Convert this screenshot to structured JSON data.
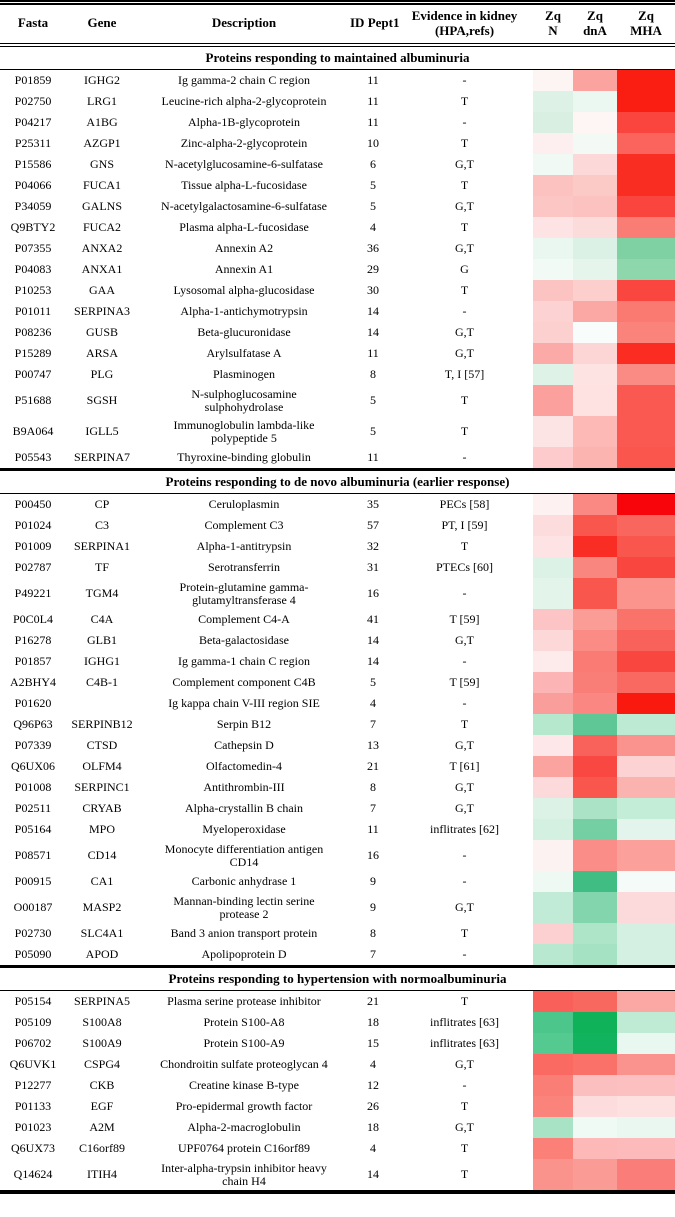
{
  "header": {
    "fasta": "Fasta",
    "gene": "Gene",
    "description": "Description",
    "id_pept1": "ID Pept1",
    "evidence_line1": "Evidence in kidney",
    "evidence_line2": "(HPA,refs)",
    "zq": "Zq",
    "zq_n_sub": "N",
    "zq_dna_sub": "dnA",
    "zq_mha_sub": "MHA"
  },
  "heatmap_colors": {
    "strong_increase_red": "#f8050c",
    "strong_decrease_green": "#0fb159",
    "neutral_white": "#fdfdfd"
  },
  "sections": [
    {
      "title": "Proteins responding to maintained albuminuria",
      "rows": [
        {
          "fasta": "P01859",
          "gene": "IGHG2",
          "description": "Ig gamma-2 chain C region",
          "id_pept1": "11",
          "evidence": "-",
          "zq_n": "#fdf4f4",
          "zq_dna": "#fba39f",
          "zq_mha": "#f91d12"
        },
        {
          "fasta": "P02750",
          "gene": "LRG1",
          "description": "Leucine-rich alpha-2-glycoprotein",
          "id_pept1": "11",
          "evidence": "T",
          "zq_n": "#ddf1e7",
          "zq_dna": "#ebf7f1",
          "zq_mha": "#f91d12"
        },
        {
          "fasta": "P04217",
          "gene": "A1BG",
          "description": "Alpha-1B-glycoprotein",
          "id_pept1": "11",
          "evidence": "-",
          "zq_n": "#d8efe2",
          "zq_dna": "#fdf6f5",
          "zq_mha": "#f9453d"
        },
        {
          "fasta": "P25311",
          "gene": "AZGP1",
          "description": "Zinc-alpha-2-glycoprotein",
          "id_pept1": "10",
          "evidence": "T",
          "zq_n": "#fdeff0",
          "zq_dna": "#f3faf6",
          "zq_mha": "#fa645c"
        },
        {
          "fasta": "P15586",
          "gene": "GNS",
          "description": "N-acetylglucosamine-6-sulfatase",
          "id_pept1": "6",
          "evidence": "G,T",
          "zq_n": "#f0f9f4",
          "zq_dna": "#fcd9d8",
          "zq_mha": "#fa2d23"
        },
        {
          "fasta": "P04066",
          "gene": "FUCA1",
          "description": "Tissue alpha-L-fucosidase",
          "id_pept1": "5",
          "evidence": "T",
          "zq_n": "#fbc2c0",
          "zq_dna": "#fbcac7",
          "zq_mha": "#fa2d23"
        },
        {
          "fasta": "P34059",
          "gene": "GALNS",
          "description": "N-acetylgalactosamine-6-sulfatase",
          "id_pept1": "5",
          "evidence": "G,T",
          "zq_n": "#fbc6c3",
          "zq_dna": "#fbc2bf",
          "zq_mha": "#f9453d"
        },
        {
          "fasta": "Q9BTY2",
          "gene": "FUCA2",
          "description": "Plasma alpha-L-fucosidase",
          "id_pept1": "4",
          "evidence": "T",
          "zq_n": "#fde3e3",
          "zq_dna": "#fcdcda",
          "zq_mha": "#fa7d75"
        },
        {
          "fasta": "P07355",
          "gene": "ANXA2",
          "description": "Annexin A2",
          "id_pept1": "36",
          "evidence": "G,T",
          "zq_n": "#eaf7f0",
          "zq_dna": "#dcf1e5",
          "zq_mha": "#7fd1a4"
        },
        {
          "fasta": "P04083",
          "gene": "ANXA1",
          "description": "Annexin A1",
          "id_pept1": "29",
          "evidence": "G",
          "zq_n": "#f2faf6",
          "zq_dna": "#e5f5ec",
          "zq_mha": "#8ed6ab"
        },
        {
          "fasta": "P10253",
          "gene": "GAA",
          "description": "Lysosomal alpha-glucosidase",
          "id_pept1": "30",
          "evidence": "T",
          "zq_n": "#fbc4c2",
          "zq_dna": "#fccfcc",
          "zq_mha": "#f9473f"
        },
        {
          "fasta": "P01011",
          "gene": "SERPINA3",
          "description": "Alpha-1-antichymotrypsin",
          "id_pept1": "14",
          "evidence": "-",
          "zq_n": "#fdd2d2",
          "zq_dna": "#fba8a4",
          "zq_mha": "#fa7a72"
        },
        {
          "fasta": "P08236",
          "gene": "GUSB",
          "description": "Beta-glucuronidase",
          "id_pept1": "14",
          "evidence": "G,T",
          "zq_n": "#fdd0d0",
          "zq_dna": "#f8fcfa",
          "zq_mha": "#fa837c"
        },
        {
          "fasta": "P15289",
          "gene": "ARSA",
          "description": "Arylsulfatase A",
          "id_pept1": "11",
          "evidence": "G,T",
          "zq_n": "#fbaaa7",
          "zq_dna": "#fcd6d4",
          "zq_mha": "#fb2d23"
        },
        {
          "fasta": "P00747",
          "gene": "PLG",
          "description": "Plasminogen",
          "id_pept1": "8",
          "evidence": "T, I [57]",
          "zq_n": "#def2e7",
          "zq_dna": "#fde3e2",
          "zq_mha": "#fa8b84"
        },
        {
          "fasta": "P51688",
          "gene": "SGSH",
          "description": "N-sulphoglucosamine sulphohydrolase",
          "id_pept1": "5",
          "evidence": "T",
          "zq_n": "#fba09d",
          "zq_dna": "#fde2e1",
          "zq_mha": "#f95950"
        },
        {
          "fasta": "B9A064",
          "gene": "IGLL5",
          "description": "Immunoglobulin lambda-like polypeptide 5",
          "id_pept1": "5",
          "evidence": "T",
          "zq_n": "#fde4e4",
          "zq_dna": "#fcb9b6",
          "zq_mha": "#f95951"
        },
        {
          "fasta": "P05543",
          "gene": "SERPINA7",
          "description": "Thyroxine-binding globulin",
          "id_pept1": "11",
          "evidence": "-",
          "zq_n": "#fdcbcb",
          "zq_dna": "#fcb4b1",
          "zq_mha": "#fa564e"
        }
      ]
    },
    {
      "title": "Proteins responding to de novo albuminuria (earlier response)",
      "rows": [
        {
          "fasta": "P00450",
          "gene": "CP",
          "description": "Ceruloplasmin",
          "id_pept1": "35",
          "evidence": "PECs [58]",
          "zq_n": "#fdf1f2",
          "zq_dna": "#fb8983",
          "zq_mha": "#f8050c"
        },
        {
          "fasta": "P01024",
          "gene": "C3",
          "description": "Complement C3",
          "id_pept1": "57",
          "evidence": "PT, I [59]",
          "zq_n": "#fddcdd",
          "zq_dna": "#f9564e",
          "zq_mha": "#f9665e"
        },
        {
          "fasta": "P01009",
          "gene": "SERPINA1",
          "description": "Alpha-1-antitrypsin",
          "id_pept1": "32",
          "evidence": "T",
          "zq_n": "#fde3e4",
          "zq_dna": "#f92d24",
          "zq_mha": "#f9564e"
        },
        {
          "fasta": "P02787",
          "gene": "TF",
          "description": "Serotransferrin",
          "id_pept1": "31",
          "evidence": "PTECs [60]",
          "zq_n": "#dcf2e6",
          "zq_dna": "#fa8680",
          "zq_mha": "#f9473f"
        },
        {
          "fasta": "P49221",
          "gene": "TGM4",
          "description": "Protein-glutamine gamma-glutamyltransferase 4",
          "id_pept1": "16",
          "evidence": "-",
          "zq_n": "#e3f5eb",
          "zq_dna": "#f9564e",
          "zq_mha": "#fa948d"
        },
        {
          "fasta": "P0C0L4",
          "gene": "C4A",
          "description": "Complement C4-A",
          "id_pept1": "41",
          "evidence": "T [59]",
          "zq_n": "#fcc4c4",
          "zq_dna": "#fa9d97",
          "zq_mha": "#f9736b"
        },
        {
          "fasta": "P16278",
          "gene": "GLB1",
          "description": "Beta-galactosidase",
          "id_pept1": "14",
          "evidence": "G,T",
          "zq_n": "#fcd8d8",
          "zq_dna": "#fa8b85",
          "zq_mha": "#f9625b"
        },
        {
          "fasta": "P01857",
          "gene": "IGHG1",
          "description": "Ig gamma-1 chain C region",
          "id_pept1": "14",
          "evidence": "-",
          "zq_n": "#fdebec",
          "zq_dna": "#fa7b74",
          "zq_mha": "#f9463e"
        },
        {
          "fasta": "A2BHY4",
          "gene": "C4B-1",
          "description": "Complement component C4B",
          "id_pept1": "5",
          "evidence": "T [59]",
          "zq_n": "#fcb4b4",
          "zq_dna": "#fa7e78",
          "zq_mha": "#fa6961"
        },
        {
          "fasta": "P01620",
          "gene": "",
          "description": "Ig kappa chain V-III region SIE",
          "id_pept1": "4",
          "evidence": "-",
          "zq_n": "#fa9e9c",
          "zq_dna": "#fa8781",
          "zq_mha": "#f9190f"
        },
        {
          "fasta": "Q96P63",
          "gene": "SERPINB12",
          "description": "Serpin B12",
          "id_pept1": "7",
          "evidence": "T",
          "zq_n": "#b6e8ce",
          "zq_dna": "#5fc795",
          "zq_mha": "#bdead3"
        },
        {
          "fasta": "P07339",
          "gene": "CTSD",
          "description": "Cathepsin D",
          "id_pept1": "13",
          "evidence": "G,T",
          "zq_n": "#fde7e8",
          "zq_dna": "#f9625b",
          "zq_mha": "#fa938d"
        },
        {
          "fasta": "Q6UX06",
          "gene": "OLFM4",
          "description": "Olfactomedin-4",
          "id_pept1": "21",
          "evidence": "T [61]",
          "zq_n": "#fba49f",
          "zq_dna": "#f94841",
          "zq_mha": "#fcd3d2"
        },
        {
          "fasta": "P01008",
          "gene": "SERPINC1",
          "description": "Antithrombin-III",
          "id_pept1": "8",
          "evidence": "G,T",
          "zq_n": "#fcd9da",
          "zq_dna": "#f9564e",
          "zq_mha": "#fbb3b0"
        },
        {
          "fasta": "P02511",
          "gene": "CRYAB",
          "description": "Alpha-crystallin B chain",
          "id_pept1": "7",
          "evidence": "G,T",
          "zq_n": "#ddf2e7",
          "zq_dna": "#abe3c7",
          "zq_mha": "#c4edd8"
        },
        {
          "fasta": "P05164",
          "gene": "MPO",
          "description": "Myeloperoxidase",
          "id_pept1": "11",
          "evidence": "inflitrates [62]",
          "zq_n": "#d3f0e1",
          "zq_dna": "#74cfa3",
          "zq_mha": "#e2f4ec"
        },
        {
          "fasta": "P08571",
          "gene": "CD14",
          "description": "Monocyte differentiation antigen CD14",
          "id_pept1": "16",
          "evidence": "-",
          "zq_n": "#fdf2f2",
          "zq_dna": "#fa8d87",
          "zq_mha": "#fba09b"
        },
        {
          "fasta": "P00915",
          "gene": "CA1",
          "description": "Carbonic anhydrase 1",
          "id_pept1": "9",
          "evidence": "-",
          "zq_n": "#eff9f4",
          "zq_dna": "#3fbd83",
          "zq_mha": "#f5fbf8"
        },
        {
          "fasta": "O00187",
          "gene": "MASP2",
          "description": "Mannan-binding lectin serine protease 2",
          "id_pept1": "9",
          "evidence": "G,T",
          "zq_n": "#c1ebd6",
          "zq_dna": "#83d5ae",
          "zq_mha": "#fcd9da"
        },
        {
          "fasta": "P02730",
          "gene": "SLC4A1",
          "description": "Band 3 anion transport protein",
          "id_pept1": "8",
          "evidence": "T",
          "zq_n": "#fccfd0",
          "zq_dna": "#aee4c8",
          "zq_mha": "#d4f0e2"
        },
        {
          "fasta": "P05090",
          "gene": "APOD",
          "description": "Apolipoprotein D",
          "id_pept1": "7",
          "evidence": "-",
          "zq_n": "#b9e8d0",
          "zq_dna": "#a5e1c3",
          "zq_mha": "#d4f0e2"
        }
      ]
    },
    {
      "title": "Proteins responding to hypertension with normoalbuminuria",
      "rows": [
        {
          "fasta": "P05154",
          "gene": "SERPINA5",
          "description": "Plasma serine protease inhibitor",
          "id_pept1": "21",
          "evidence": "T",
          "zq_n": "#f9605a",
          "zq_dna": "#f9685f",
          "zq_mha": "#fba7a4"
        },
        {
          "fasta": "P05109",
          "gene": "S100A8",
          "description": "Protein S100-A8",
          "id_pept1": "18",
          "evidence": "inflitrates [63]",
          "zq_n": "#4cc68a",
          "zq_dna": "#0fb159",
          "zq_mha": "#bfead4"
        },
        {
          "fasta": "P06702",
          "gene": "S100A9",
          "description": "Protein S100-A9",
          "id_pept1": "15",
          "evidence": "inflitrates [63]",
          "zq_n": "#55ca90",
          "zq_dna": "#12b35e",
          "zq_mha": "#e8f7f0"
        },
        {
          "fasta": "Q6UVK1",
          "gene": "CSPG4",
          "description": "Chondroitin sulfate proteoglycan 4",
          "id_pept1": "4",
          "evidence": "G,T",
          "zq_n": "#fa6a62",
          "zq_dna": "#fa716a",
          "zq_mha": "#fa938e"
        },
        {
          "fasta": "P12277",
          "gene": "CKB",
          "description": "Creatine kinase B-type",
          "id_pept1": "12",
          "evidence": "-",
          "zq_n": "#fa7d76",
          "zq_dna": "#fcbfbf",
          "zq_mha": "#fcc0c0"
        },
        {
          "fasta": "P01133",
          "gene": "EGF",
          "description": "Pro-epidermal growth factor",
          "id_pept1": "26",
          "evidence": "T",
          "zq_n": "#fa837b",
          "zq_dna": "#fddcdd",
          "zq_mha": "#fde0e0"
        },
        {
          "fasta": "P01023",
          "gene": "A2M",
          "description": "Alpha-2-macroglobulin",
          "id_pept1": "18",
          "evidence": "G,T",
          "zq_n": "#a9e3c6",
          "zq_dna": "#f0faf5",
          "zq_mha": "#eaf7f1"
        },
        {
          "fasta": "Q6UX73",
          "gene": "C16orf89",
          "description": "UPF0764 protein C16orf89",
          "id_pept1": "4",
          "evidence": "T",
          "zq_n": "#fa8078",
          "zq_dna": "#fcb9b8",
          "zq_mha": "#fcbaba"
        },
        {
          "fasta": "Q14624",
          "gene": "ITIH4",
          "description": "Inter-alpha-trypsin inhibitor heavy chain H4",
          "id_pept1": "14",
          "evidence": "T",
          "zq_n": "#fa938c",
          "zq_dna": "#fa9b95",
          "zq_mha": "#fa7d79"
        }
      ]
    }
  ]
}
